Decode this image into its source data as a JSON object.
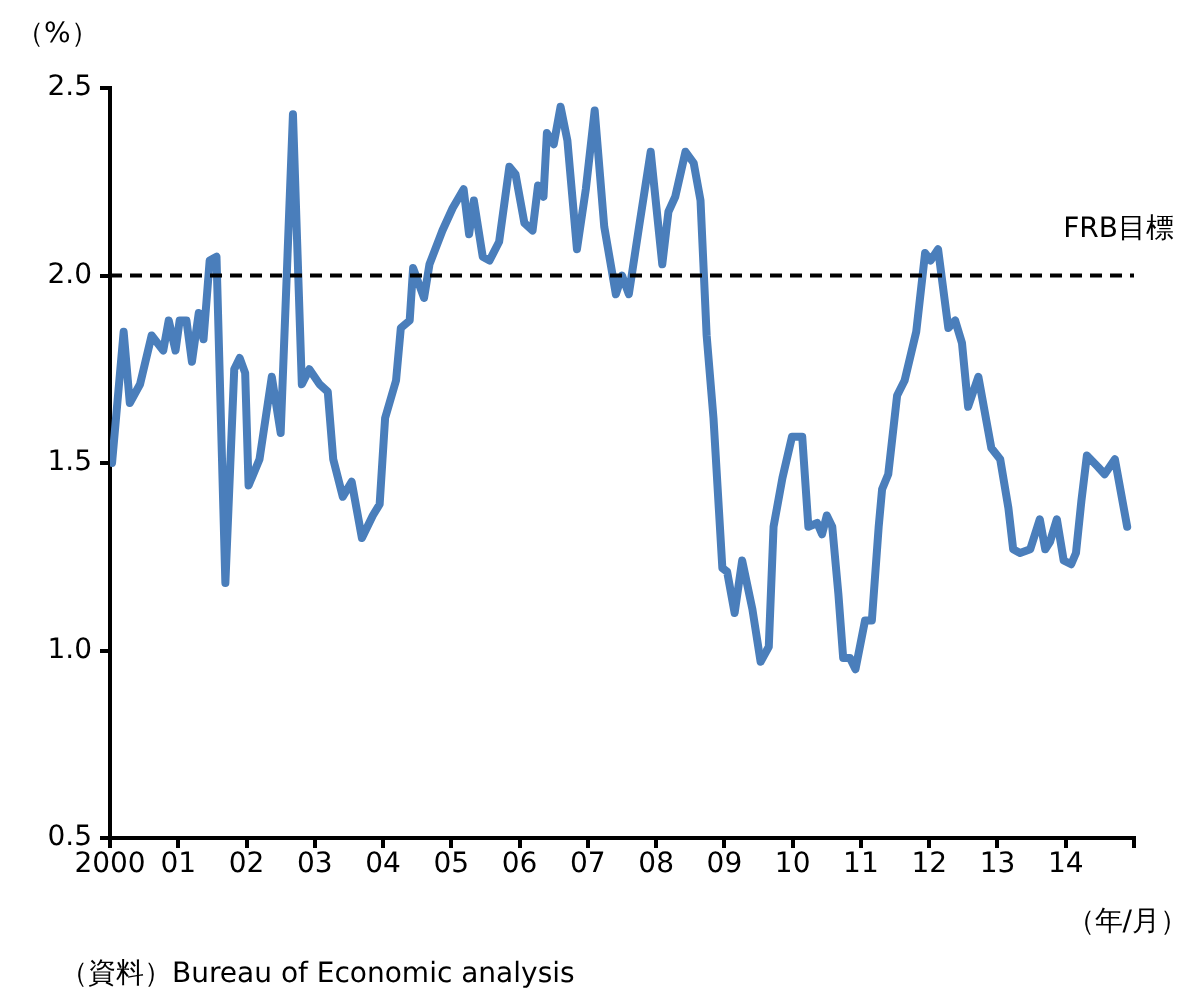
{
  "chart_data": {
    "type": "line",
    "ylabel": "（%）",
    "xlabel": "（年/月）",
    "annotations": [
      "（資料）Bureau of Economic analysis"
    ],
    "x": [
      2000.03,
      2000.2,
      2000.29,
      2000.44,
      2000.61,
      2000.78,
      2000.86,
      2000.96,
      2001.02,
      2001.12,
      2001.2,
      2001.3,
      2001.37,
      2001.46,
      2001.56,
      2001.69,
      2001.82,
      2001.9,
      2001.98,
      2002.03,
      2002.19,
      2002.37,
      2002.5,
      2002.68,
      2002.81,
      2002.92,
      2003.07,
      2003.19,
      2003.27,
      2003.41,
      2003.54,
      2003.69,
      2003.85,
      2003.95,
      2004.03,
      2004.19,
      2004.26,
      2004.39,
      2004.44,
      2004.6,
      2004.68,
      2004.87,
      2005.02,
      2005.18,
      2005.26,
      2005.33,
      2005.46,
      2005.56,
      2005.7,
      2005.85,
      2005.94,
      2006.07,
      2006.19,
      2006.27,
      2006.35,
      2006.4,
      2006.5,
      2006.6,
      2006.7,
      2006.84,
      2006.97,
      2007.1,
      2007.24,
      2007.41,
      2007.5,
      2007.6,
      2007.75,
      2007.92,
      2008.09,
      2008.18,
      2008.28,
      2008.43,
      2008.55,
      2008.65,
      2008.74,
      2008.84,
      2008.97,
      2009.04,
      2009.15,
      2009.26,
      2009.41,
      2009.53,
      2009.65,
      2009.72,
      2009.85,
      2009.99,
      2010.14,
      2010.23,
      2010.36,
      2010.43,
      2010.5,
      2010.58,
      2010.67,
      2010.74,
      2010.84,
      2010.92,
      2011.06,
      2011.16,
      2011.26,
      2011.31,
      2011.4,
      2011.53,
      2011.64,
      2011.81,
      2011.94,
      2012.02,
      2012.13,
      2012.28,
      2012.38,
      2012.48,
      2012.57,
      2012.72,
      2012.91,
      2013.04,
      2013.16,
      2013.23,
      2013.33,
      2013.48,
      2013.62,
      2013.7,
      2013.77,
      2013.87,
      2013.97,
      2014.08,
      2014.15,
      2014.23,
      2014.31,
      2014.47,
      2014.57,
      2014.72,
      2014.9
    ],
    "series": [
      {
        "color": "#4a7ebb",
        "values": [
          1.5,
          1.85,
          1.66,
          1.71,
          1.84,
          1.8,
          1.88,
          1.8,
          1.88,
          1.88,
          1.77,
          1.9,
          1.83,
          2.04,
          2.05,
          1.18,
          1.75,
          1.78,
          1.74,
          1.44,
          1.51,
          1.73,
          1.58,
          2.43,
          1.71,
          1.75,
          1.71,
          1.69,
          1.51,
          1.41,
          1.45,
          1.3,
          1.36,
          1.39,
          1.62,
          1.72,
          1.86,
          1.88,
          2.02,
          1.94,
          2.03,
          2.12,
          2.18,
          2.23,
          2.11,
          2.2,
          2.05,
          2.04,
          2.09,
          2.29,
          2.27,
          2.14,
          2.12,
          2.24,
          2.21,
          2.38,
          2.35,
          2.45,
          2.36,
          2.07,
          2.23,
          2.44,
          2.13,
          1.95,
          2.0,
          1.95,
          2.13,
          2.33,
          2.03,
          2.17,
          2.21,
          2.33,
          2.3,
          2.2,
          1.84,
          1.62,
          1.22,
          1.21,
          1.1,
          1.24,
          1.11,
          0.97,
          1.01,
          1.33,
          1.46,
          1.57,
          1.57,
          1.33,
          1.34,
          1.31,
          1.36,
          1.33,
          1.15,
          0.98,
          0.98,
          0.95,
          1.08,
          1.08,
          1.33,
          1.43,
          1.47,
          1.68,
          1.72,
          1.85,
          2.06,
          2.04,
          2.07,
          1.86,
          1.88,
          1.82,
          1.65,
          1.73,
          1.54,
          1.51,
          1.38,
          1.27,
          1.26,
          1.27,
          1.35,
          1.27,
          1.29,
          1.35,
          1.24,
          1.23,
          1.26,
          1.4,
          1.52,
          1.49,
          1.47,
          1.51,
          1.33
        ]
      }
    ],
    "xlim": [
      2000,
      2015
    ],
    "xticks": [
      {
        "value": 2000,
        "label": "2000"
      },
      {
        "value": 2001,
        "label": "01"
      },
      {
        "value": 2002,
        "label": "02"
      },
      {
        "value": 2003,
        "label": "03"
      },
      {
        "value": 2004,
        "label": "04"
      },
      {
        "value": 2005,
        "label": "05"
      },
      {
        "value": 2006,
        "label": "06"
      },
      {
        "value": 2007,
        "label": "07"
      },
      {
        "value": 2008,
        "label": "08"
      },
      {
        "value": 2009,
        "label": "09"
      },
      {
        "value": 2010,
        "label": "10"
      },
      {
        "value": 2011,
        "label": "11"
      },
      {
        "value": 2012,
        "label": "12"
      },
      {
        "value": 2013,
        "label": "13"
      },
      {
        "value": 2014,
        "label": "14"
      },
      {
        "value": 2015,
        "label": null
      }
    ],
    "ylim": [
      0.5,
      2.5
    ],
    "yticks": [
      {
        "value": 0.5,
        "label": "0.5"
      },
      {
        "value": 1,
        "label": "1.0"
      },
      {
        "value": 1.5,
        "label": "1.5"
      },
      {
        "value": 2,
        "label": "2.0"
      },
      {
        "value": 2.5,
        "label": "2.5"
      }
    ],
    "ref_lines": [
      {
        "axis": "y",
        "value": 2,
        "label": "FRB目標",
        "color": "#000000",
        "line_style": "dashed"
      }
    ],
    "grid": false,
    "legend": false
  }
}
